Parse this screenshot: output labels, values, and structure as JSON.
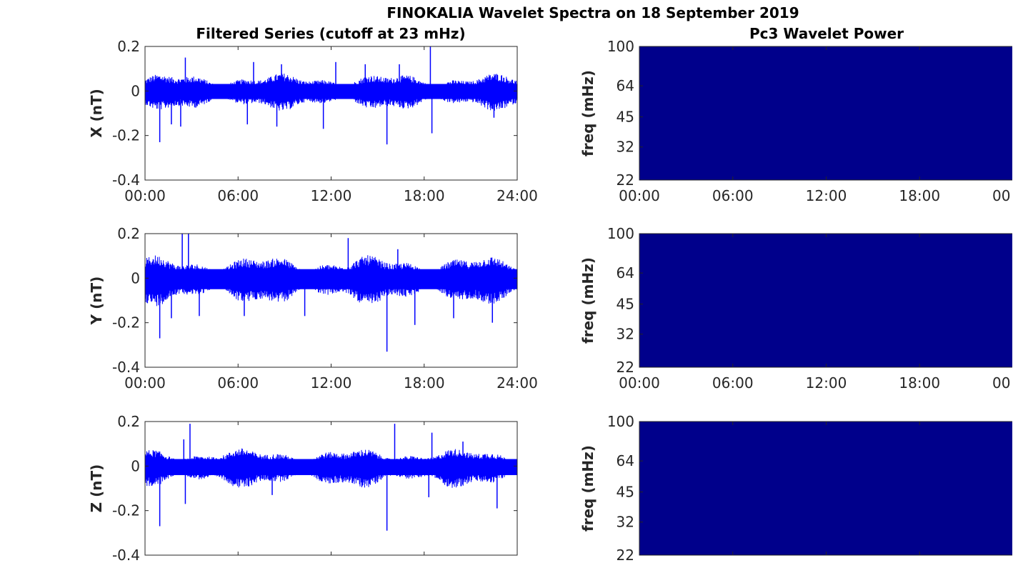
{
  "figure": {
    "title": "FINOKALIA Wavelet Spectra on 18 September 2019",
    "left_title": "Filtered Series (cutoff at 23 mHz)",
    "right_title": "Pc3 Wavelet Power"
  },
  "colors": {
    "series": "#0000ff",
    "spectrum_fill": "#00008b",
    "axes": "#262626"
  },
  "chart_data": [
    {
      "type": "line",
      "name": "X filtered series",
      "ylabel": "X (nT)",
      "ylim": [
        -0.4,
        0.2
      ],
      "yticks": [
        "0.2",
        "0",
        "-0.2",
        "-0.4"
      ],
      "yticks_values": [
        0.2,
        0,
        -0.2,
        -0.4
      ],
      "xlim_hours": [
        0,
        24
      ],
      "xticks": [
        "00:00",
        "06:00",
        "12:00",
        "18:00",
        "24:00"
      ],
      "envelope": {
        "upper": 0.07,
        "lower": -0.08
      },
      "spikes": [
        {
          "t": 0.95,
          "v": -0.23
        },
        {
          "t": 1.7,
          "v": -0.15
        },
        {
          "t": 2.6,
          "v": 0.15
        },
        {
          "t": 2.3,
          "v": -0.16
        },
        {
          "t": 6.6,
          "v": -0.15
        },
        {
          "t": 7.0,
          "v": 0.13
        },
        {
          "t": 8.5,
          "v": -0.16
        },
        {
          "t": 8.8,
          "v": 0.12
        },
        {
          "t": 11.5,
          "v": -0.17
        },
        {
          "t": 12.3,
          "v": 0.13
        },
        {
          "t": 14.2,
          "v": 0.12
        },
        {
          "t": 15.6,
          "v": -0.24
        },
        {
          "t": 16.4,
          "v": 0.12
        },
        {
          "t": 18.4,
          "v": 0.2
        },
        {
          "t": 18.5,
          "v": -0.19
        },
        {
          "t": 22.5,
          "v": -0.12
        }
      ]
    },
    {
      "type": "line",
      "name": "Y filtered series",
      "ylabel": "Y (nT)",
      "ylim": [
        -0.4,
        0.2
      ],
      "yticks": [
        "0.2",
        "0",
        "-0.2",
        "-0.4"
      ],
      "yticks_values": [
        0.2,
        0,
        -0.2,
        -0.4
      ],
      "xlim_hours": [
        0,
        24
      ],
      "xticks": [
        "00:00",
        "06:00",
        "12:00",
        "18:00",
        "24:00"
      ],
      "envelope": {
        "upper": 0.09,
        "lower": -0.11
      },
      "spikes": [
        {
          "t": 0.95,
          "v": -0.27
        },
        {
          "t": 1.7,
          "v": -0.18
        },
        {
          "t": 2.4,
          "v": 0.2
        },
        {
          "t": 2.8,
          "v": 0.2
        },
        {
          "t": 3.5,
          "v": -0.17
        },
        {
          "t": 6.4,
          "v": -0.17
        },
        {
          "t": 10.3,
          "v": -0.17
        },
        {
          "t": 13.1,
          "v": 0.18
        },
        {
          "t": 15.6,
          "v": -0.33
        },
        {
          "t": 16.3,
          "v": 0.13
        },
        {
          "t": 17.4,
          "v": -0.21
        },
        {
          "t": 19.9,
          "v": -0.18
        },
        {
          "t": 22.4,
          "v": -0.2
        }
      ]
    },
    {
      "type": "line",
      "name": "Z filtered series",
      "ylabel": "Z (nT)",
      "ylim": [
        -0.4,
        0.2
      ],
      "yticks": [
        "0.2",
        "0",
        "-0.2",
        "-0.4"
      ],
      "yticks_values": [
        0.2,
        0,
        -0.2,
        -0.4
      ],
      "xlim_hours": [
        0,
        24
      ],
      "xticks": [
        "",
        "",
        "",
        "",
        ""
      ],
      "envelope": {
        "upper": 0.07,
        "lower": -0.09
      },
      "spikes": [
        {
          "t": 0.95,
          "v": -0.27
        },
        {
          "t": 2.5,
          "v": 0.12
        },
        {
          "t": 2.9,
          "v": 0.19
        },
        {
          "t": 2.6,
          "v": -0.17
        },
        {
          "t": 8.2,
          "v": -0.13
        },
        {
          "t": 15.6,
          "v": -0.29
        },
        {
          "t": 16.1,
          "v": 0.19
        },
        {
          "t": 18.5,
          "v": 0.15
        },
        {
          "t": 18.3,
          "v": -0.14
        },
        {
          "t": 20.5,
          "v": 0.11
        },
        {
          "t": 22.7,
          "v": -0.19
        }
      ]
    },
    {
      "type": "heatmap",
      "name": "X Pc3 wavelet power",
      "ylabel": "freq (mHz)",
      "ylim": [
        22,
        100
      ],
      "yscale": "log",
      "yticks": [
        "100",
        "64",
        "45",
        "32",
        "22"
      ],
      "yticks_values": [
        100,
        64,
        45,
        32,
        22
      ],
      "xticks": [
        "00:00",
        "06:00",
        "12:00",
        "18:00",
        "00"
      ],
      "xticks_hours": [
        0,
        6,
        12,
        18,
        24
      ]
    },
    {
      "type": "heatmap",
      "name": "Y Pc3 wavelet power",
      "ylabel": "freq (mHz)",
      "ylim": [
        22,
        100
      ],
      "yscale": "log",
      "yticks": [
        "100",
        "64",
        "45",
        "32",
        "22"
      ],
      "yticks_values": [
        100,
        64,
        45,
        32,
        22
      ],
      "xticks": [
        "00:00",
        "06:00",
        "12:00",
        "18:00",
        "00"
      ],
      "xticks_hours": [
        0,
        6,
        12,
        18,
        24
      ]
    },
    {
      "type": "heatmap",
      "name": "Z Pc3 wavelet power",
      "ylabel": "freq (mHz)",
      "ylim": [
        22,
        100
      ],
      "yscale": "log",
      "yticks": [
        "100",
        "64",
        "45",
        "32",
        "22"
      ],
      "yticks_values": [
        100,
        64,
        45,
        32,
        22
      ],
      "xticks": [
        "",
        "",
        "",
        "",
        ""
      ],
      "xticks_hours": [
        0,
        6,
        12,
        18,
        24
      ]
    }
  ]
}
